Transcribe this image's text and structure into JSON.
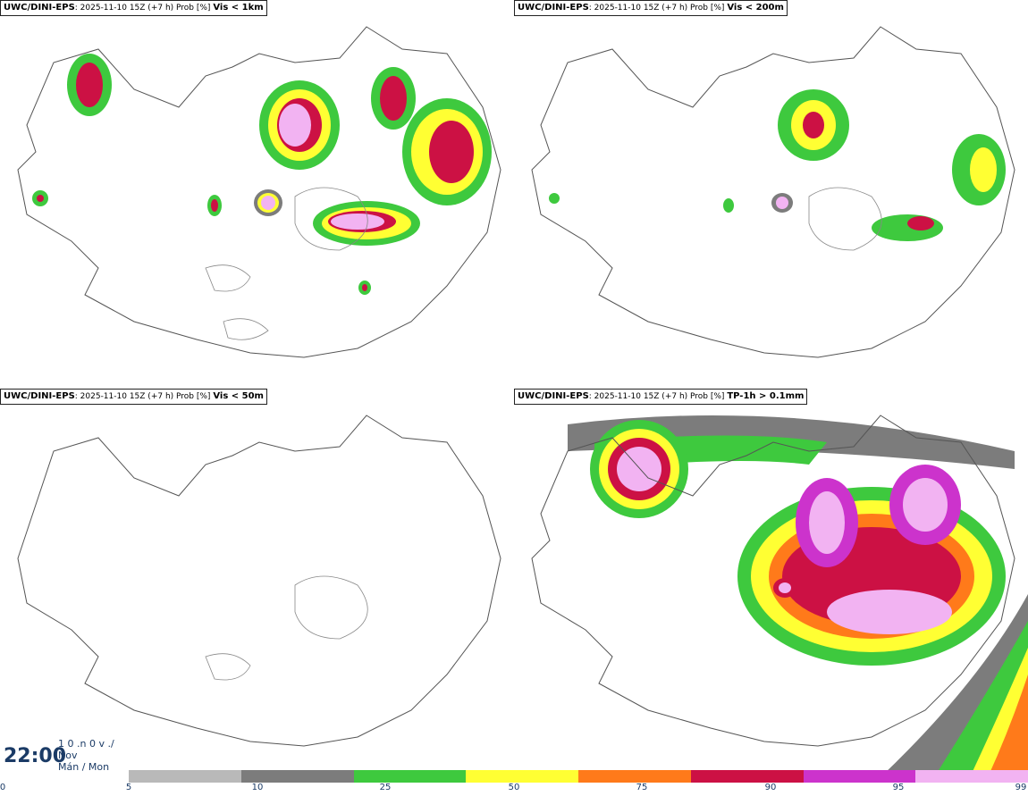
{
  "panels": [
    {
      "model": "UWC/DINI-EPS",
      "meta": ": 2025-11-10 15Z (+7 h) Prob [%]",
      "var": "Vis < 1km"
    },
    {
      "model": "UWC/DINI-EPS",
      "meta": ": 2025-11-10 15Z (+7 h) Prob [%]",
      "var": "Vis < 200m"
    },
    {
      "model": "UWC/DINI-EPS",
      "meta": ": 2025-11-10 15Z (+7 h) Prob [%]",
      "var": "Vis < 50m"
    },
    {
      "model": "UWC/DINI-EPS",
      "meta": ": 2025-11-10 15Z (+7 h) Prob [%]",
      "var": "TP-1h > 0.1mm"
    }
  ],
  "valid_time": {
    "time": "22:00",
    "date_line": "1 0 .n 0 v ./",
    "month": "Nov",
    "weekday": "Mán / Mon"
  },
  "colorbar": {
    "ticks": [
      "0",
      "5",
      "10",
      "25",
      "50",
      "75",
      "90",
      "95",
      "99"
    ],
    "colors": [
      "#b9b9b9",
      "#7c7c7c",
      "#3ec93e",
      "#ffff33",
      "#ff7a1a",
      "#cc1144",
      "#cc33cc",
      "#f2b3f2"
    ]
  }
}
